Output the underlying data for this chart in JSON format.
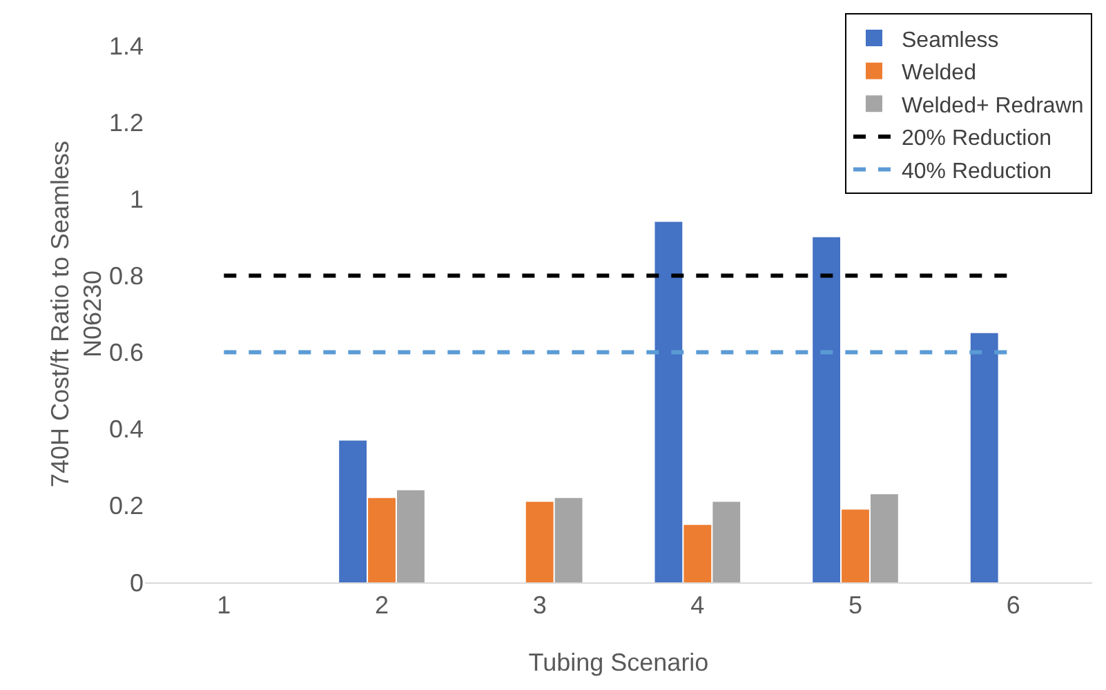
{
  "chart_data": {
    "type": "bar",
    "xlabel": "Tubing Scenario",
    "ylabel": "740H Cost/ft Ratio to Seamless\nN06230",
    "categories": [
      "1",
      "2",
      "3",
      "4",
      "5",
      "6"
    ],
    "series": [
      {
        "name": "Seamless",
        "color": "#4472c4",
        "values": [
          null,
          0.37,
          null,
          0.94,
          0.9,
          0.65
        ]
      },
      {
        "name": "Welded",
        "color": "#ed7d31",
        "values": [
          null,
          0.22,
          0.21,
          0.15,
          0.19,
          null
        ]
      },
      {
        "name": "Welded+ Redrawn",
        "color": "#a5a5a5",
        "values": [
          null,
          0.24,
          0.22,
          0.21,
          0.23,
          null
        ]
      },
      {
        "name": "20% Reduction",
        "type": "line",
        "color": "#000000",
        "line_style": "dashed",
        "values": [
          0.8,
          0.8,
          0.8,
          0.8,
          0.8,
          0.8
        ]
      },
      {
        "name": "40% Reduction",
        "type": "line",
        "color": "#5b9bd5",
        "line_style": "dashed",
        "values": [
          0.6,
          0.6,
          0.6,
          0.6,
          0.6,
          0.6
        ]
      }
    ],
    "ylim": [
      0,
      1.4
    ],
    "yticks": [
      0,
      0.2,
      0.4,
      0.6,
      0.8,
      1,
      1.2,
      1.4
    ],
    "grid": false,
    "legend": "top right"
  }
}
